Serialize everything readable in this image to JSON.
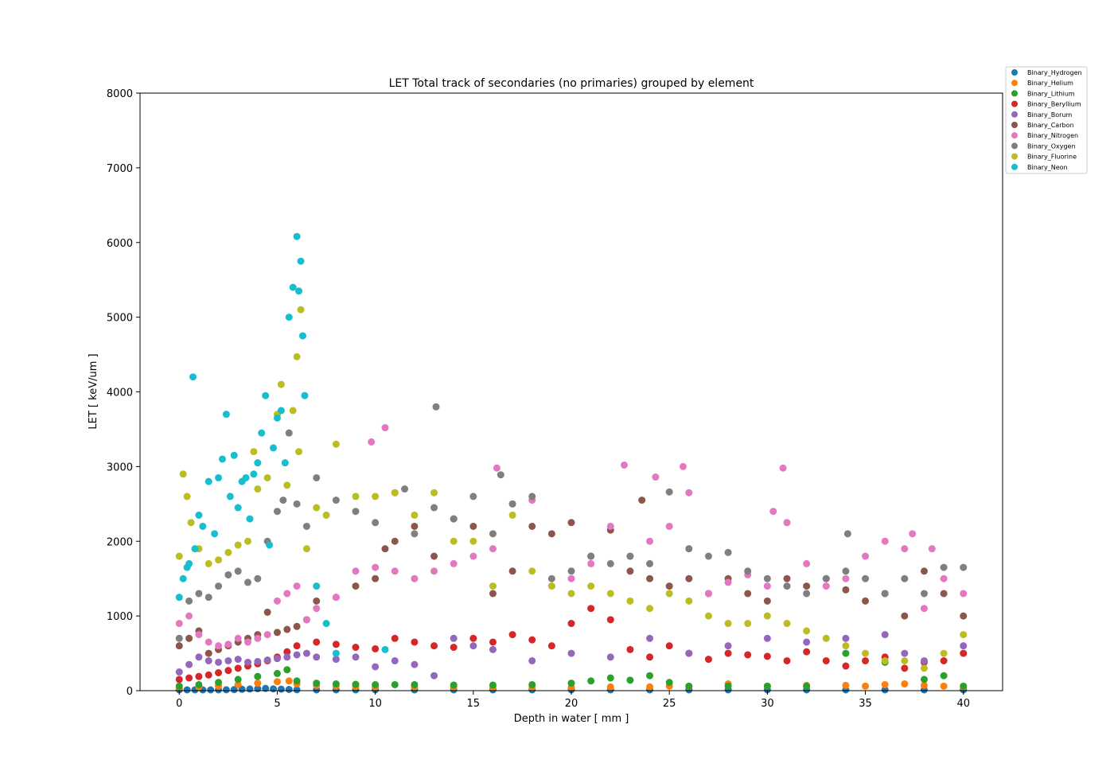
{
  "chart_data": {
    "type": "scatter",
    "title": "LET Total track of secondaries (no primaries) grouped by element",
    "xlabel": "Depth in water [ mm ]",
    "ylabel": "LET [ keV/um ]",
    "xlim": [
      -2,
      42
    ],
    "ylim": [
      0,
      8000
    ],
    "xticks": [
      0,
      5,
      10,
      15,
      20,
      25,
      30,
      35,
      40
    ],
    "yticks": [
      0,
      1000,
      2000,
      3000,
      4000,
      5000,
      6000,
      7000,
      8000
    ],
    "grid": false,
    "legend_placement": "outside top-right",
    "series": [
      {
        "name": "Binary_Hydrogen",
        "color": "#1f77b4",
        "x": [
          0,
          0.4,
          0.8,
          1.2,
          1.6,
          2.0,
          2.4,
          2.8,
          3.2,
          3.6,
          4.0,
          4.4,
          4.8,
          5.2,
          5.6,
          6.0,
          7,
          8,
          9,
          10,
          12,
          14,
          16,
          18,
          20,
          22,
          24,
          26,
          28,
          30,
          32,
          34,
          36,
          38,
          40
        ],
        "y": [
          3,
          4,
          5,
          6,
          8,
          10,
          12,
          14,
          18,
          22,
          26,
          30,
          24,
          20,
          16,
          12,
          10,
          9,
          8,
          8,
          7,
          7,
          6,
          6,
          6,
          6,
          5,
          5,
          5,
          5,
          5,
          5,
          5,
          5,
          5
        ]
      },
      {
        "name": "Binary_Helium",
        "color": "#ff7f0e",
        "x": [
          0,
          1,
          2,
          3,
          4,
          5,
          5.6,
          6,
          7,
          8,
          9,
          10,
          12,
          14,
          16,
          18,
          20,
          22,
          24,
          25,
          26,
          28,
          30,
          32,
          34,
          35,
          36,
          37,
          38,
          39,
          40
        ],
        "y": [
          40,
          50,
          60,
          80,
          100,
          120,
          130,
          90,
          70,
          60,
          55,
          50,
          50,
          45,
          45,
          45,
          45,
          50,
          50,
          60,
          55,
          90,
          60,
          70,
          70,
          60,
          80,
          90,
          70,
          60,
          50
        ]
      },
      {
        "name": "Binary_Lithium",
        "color": "#2ca02c",
        "x": [
          0,
          1,
          2,
          3,
          4,
          5,
          5.5,
          6,
          7,
          8,
          9,
          10,
          11,
          12,
          14,
          16,
          18,
          20,
          21,
          22,
          23,
          24,
          25,
          26,
          28,
          30,
          32,
          34,
          36,
          38,
          39,
          40
        ],
        "y": [
          60,
          80,
          110,
          150,
          190,
          230,
          280,
          130,
          100,
          90,
          85,
          80,
          80,
          80,
          75,
          75,
          80,
          100,
          130,
          170,
          140,
          200,
          110,
          60,
          60,
          60,
          60,
          500,
          380,
          150,
          200,
          60
        ]
      },
      {
        "name": "Binary_Beryllium",
        "color": "#d62728",
        "x": [
          0,
          0.5,
          1,
          1.5,
          2,
          2.5,
          3,
          3.5,
          4,
          4.5,
          5,
          5.5,
          6,
          7,
          8,
          9,
          10,
          11,
          12,
          13,
          14,
          15,
          16,
          17,
          18,
          19,
          20,
          21,
          22,
          23,
          24,
          25,
          26,
          27,
          28,
          29,
          30,
          31,
          32,
          33,
          34,
          35,
          36,
          37,
          38,
          39,
          40
        ],
        "y": [
          150,
          170,
          190,
          210,
          240,
          270,
          300,
          330,
          360,
          400,
          450,
          520,
          600,
          650,
          620,
          580,
          560,
          700,
          650,
          600,
          580,
          700,
          650,
          750,
          680,
          600,
          900,
          1100,
          950,
          550,
          450,
          600,
          500,
          420,
          500,
          480,
          460,
          400,
          520,
          400,
          330,
          400,
          450,
          300,
          380,
          400,
          500
        ]
      },
      {
        "name": "Binary_Borum",
        "color": "#9467bd",
        "x": [
          0,
          0.5,
          1,
          1.5,
          2,
          2.5,
          3,
          3.5,
          4,
          4.5,
          5,
          5.5,
          6,
          6.5,
          7,
          8,
          9,
          10,
          11,
          12,
          13,
          14,
          15,
          16,
          18,
          20,
          22,
          24,
          26,
          28,
          30,
          32,
          34,
          36,
          37,
          38,
          40
        ],
        "y": [
          250,
          350,
          450,
          400,
          380,
          400,
          420,
          380,
          390,
          410,
          430,
          450,
          480,
          500,
          450,
          420,
          450,
          320,
          400,
          350,
          200,
          700,
          600,
          550,
          400,
          500,
          450,
          700,
          500,
          600,
          700,
          650,
          700,
          750,
          500,
          400,
          600
        ]
      },
      {
        "name": "Binary_Carbon",
        "color": "#8c564b",
        "x": [
          0,
          0.5,
          1,
          1.5,
          2,
          2.5,
          3,
          3.5,
          4,
          4.5,
          5,
          5.5,
          6,
          6.5,
          7,
          8,
          9,
          10,
          10.5,
          11,
          12,
          13,
          14,
          15,
          16,
          17,
          18,
          19,
          20,
          21,
          22,
          23,
          23.6,
          24,
          25,
          26,
          27,
          28,
          29,
          30,
          31,
          32,
          33,
          34,
          35,
          36,
          37,
          38,
          39,
          40
        ],
        "y": [
          600,
          700,
          800,
          500,
          550,
          600,
          650,
          700,
          750,
          1050,
          780,
          820,
          860,
          950,
          1200,
          1250,
          1400,
          1500,
          1900,
          2000,
          2200,
          1800,
          2300,
          2200,
          1300,
          1600,
          2200,
          2100,
          2250,
          1800,
          2150,
          1600,
          2550,
          1500,
          1400,
          1500,
          1300,
          1500,
          1300,
          1200,
          1500,
          1400,
          1500,
          1350,
          1200,
          1300,
          1000,
          1600,
          1300,
          1000
        ]
      },
      {
        "name": "Binary_Nitrogen",
        "color": "#e377c2",
        "x": [
          0,
          0.5,
          1,
          1.5,
          2,
          2.5,
          3,
          3.5,
          4,
          4.5,
          5,
          5.5,
          6,
          6.5,
          7,
          8,
          9,
          9.8,
          10,
          10.5,
          11,
          12,
          13,
          14,
          15,
          16,
          16.2,
          17,
          18,
          19,
          20,
          21,
          22,
          22.7,
          23,
          24,
          24.3,
          25,
          25.7,
          26,
          27,
          28,
          29,
          30,
          30.3,
          30.8,
          31,
          32,
          33,
          34,
          35,
          36,
          37,
          37.4,
          38,
          38.4,
          39,
          40
        ],
        "y": [
          900,
          1000,
          750,
          650,
          600,
          620,
          700,
          650,
          700,
          750,
          1200,
          1300,
          1400,
          950,
          1100,
          1250,
          1600,
          3330,
          1650,
          3520,
          1600,
          1500,
          1600,
          1700,
          1800,
          1900,
          2980,
          2500,
          2550,
          1400,
          1500,
          1700,
          2200,
          3020,
          1800,
          2000,
          2860,
          2200,
          3000,
          2650,
          1300,
          1450,
          1550,
          1400,
          2400,
          2980,
          2250,
          1700,
          1400,
          1500,
          1800,
          2000,
          1900,
          2100,
          1100,
          1900,
          1500,
          1300
        ]
      },
      {
        "name": "Binary_Oxygen",
        "color": "#7f7f7f",
        "x": [
          0,
          0.5,
          1,
          1.5,
          2,
          2.5,
          3,
          3.5,
          4,
          4.5,
          5,
          5.3,
          5.6,
          6,
          6.5,
          7,
          8,
          9,
          10,
          11,
          11.5,
          12,
          13,
          13.1,
          14,
          15,
          16,
          16.4,
          17,
          18,
          19,
          20,
          21,
          22,
          23,
          24,
          25,
          26,
          27,
          28,
          29,
          30,
          31,
          32,
          33,
          34,
          34.1,
          35,
          36,
          37,
          38,
          39,
          40
        ],
        "y": [
          700,
          1200,
          1300,
          1250,
          1400,
          1550,
          1600,
          1450,
          1500,
          2000,
          2400,
          2550,
          3450,
          2500,
          2200,
          2850,
          2550,
          2400,
          2250,
          2650,
          2700,
          2100,
          2450,
          3800,
          2300,
          2600,
          2100,
          2890,
          2500,
          2600,
          1500,
          1600,
          1800,
          1700,
          1800,
          1700,
          2660,
          1900,
          1800,
          1850,
          1600,
          1500,
          1400,
          1300,
          1500,
          1600,
          2100,
          1500,
          1300,
          1500,
          1300,
          1650,
          1650
        ]
      },
      {
        "name": "Binary_Fluorine",
        "color": "#bcbd22",
        "x": [
          0,
          0.2,
          0.4,
          0.6,
          1,
          1.5,
          2,
          2.5,
          3,
          3.5,
          3.8,
          4,
          4.5,
          5,
          5.2,
          5.5,
          5.8,
          6,
          6.1,
          6.2,
          6.5,
          7,
          7.5,
          8,
          9,
          10,
          11,
          12,
          13,
          14,
          15,
          16,
          17,
          18,
          19,
          20,
          21,
          22,
          23,
          24,
          25,
          26,
          27,
          28,
          29,
          30,
          31,
          32,
          33,
          34,
          35,
          36,
          37,
          38,
          39,
          40
        ],
        "y": [
          1800,
          2900,
          2600,
          2250,
          1900,
          1700,
          1750,
          1850,
          1950,
          2000,
          3200,
          2700,
          2850,
          3700,
          4100,
          2750,
          3750,
          4470,
          3200,
          5100,
          1900,
          2450,
          2350,
          3300,
          2600,
          2600,
          2650,
          2350,
          2650,
          2000,
          2000,
          1400,
          2350,
          1600,
          1400,
          1300,
          1400,
          1300,
          1200,
          1100,
          1300,
          1200,
          1000,
          900,
          900,
          1000,
          900,
          800,
          700,
          600,
          500,
          400,
          400,
          300,
          500,
          750
        ]
      },
      {
        "name": "Binary_Neon",
        "color": "#17becf",
        "x": [
          0,
          0.2,
          0.4,
          0.5,
          0.7,
          0.8,
          1,
          1.2,
          1.5,
          1.8,
          2,
          2.2,
          2.4,
          2.6,
          2.8,
          3,
          3.2,
          3.4,
          3.6,
          3.8,
          4,
          4.2,
          4.4,
          4.6,
          4.8,
          5,
          5.2,
          5.4,
          5.6,
          5.8,
          6,
          6.1,
          6.2,
          6.3,
          6.4,
          7,
          7.5,
          8,
          10.5
        ],
        "y": [
          1250,
          1500,
          1650,
          1700,
          4200,
          1900,
          2350,
          2200,
          2800,
          2100,
          2850,
          3100,
          3700,
          2600,
          3150,
          2450,
          2800,
          2850,
          2300,
          2900,
          3050,
          3450,
          3950,
          1950,
          3250,
          3650,
          3750,
          3050,
          5000,
          5400,
          6080,
          5350,
          5750,
          4750,
          3950,
          1400,
          900,
          500,
          550
        ]
      }
    ]
  }
}
